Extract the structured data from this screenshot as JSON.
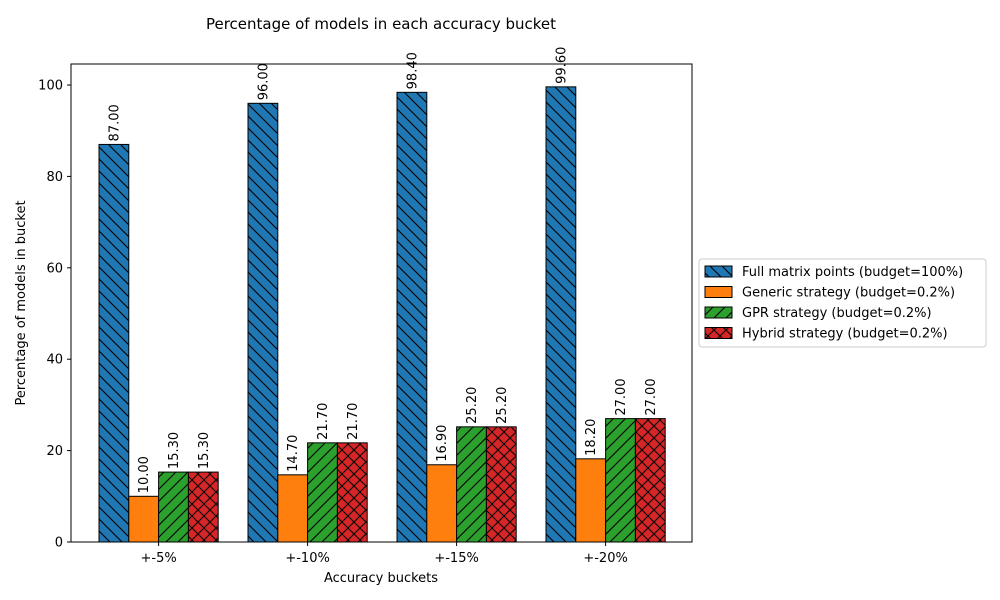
{
  "chart_data": {
    "type": "bar",
    "title": "Percentage of models in each accuracy bucket",
    "xlabel": "Accuracy buckets",
    "ylabel": "Percentage of models in bucket",
    "categories": [
      "+-5%",
      "+-10%",
      "+-15%",
      "+-20%"
    ],
    "ylim": [
      0,
      104.6
    ],
    "yticks": [
      0,
      20,
      40,
      60,
      80,
      100
    ],
    "legend_position": "right, outside plot",
    "series": [
      {
        "name": "Full matrix points (budget=100%)",
        "color": "#1f77b4",
        "hatch": "backslash",
        "values": [
          87.0,
          96.0,
          98.4,
          99.6
        ],
        "labels": [
          "87.00",
          "96.00",
          "98.40",
          "99.60"
        ]
      },
      {
        "name": "Generic strategy (budget=0.2%)",
        "color": "#ff7f0e",
        "hatch": "none",
        "values": [
          10.0,
          14.7,
          16.9,
          18.2
        ],
        "labels": [
          "10.00",
          "14.70",
          "16.90",
          "18.20"
        ]
      },
      {
        "name": "GPR strategy (budget=0.2%)",
        "color": "#2ca02c",
        "hatch": "slash",
        "values": [
          15.3,
          21.7,
          25.2,
          27.0
        ],
        "labels": [
          "15.30",
          "21.70",
          "25.20",
          "27.00"
        ]
      },
      {
        "name": "Hybrid strategy (budget=0.2%)",
        "color": "#d62728",
        "hatch": "cross",
        "values": [
          15.3,
          21.7,
          25.2,
          27.0
        ],
        "labels": [
          "15.30",
          "21.70",
          "25.20",
          "27.00"
        ]
      }
    ]
  }
}
